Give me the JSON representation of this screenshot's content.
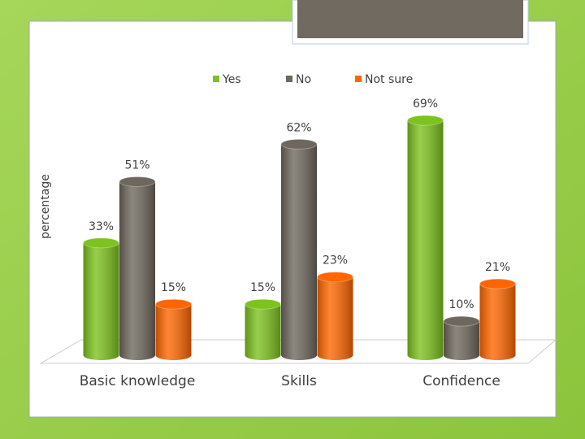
{
  "chart_data": {
    "type": "bar",
    "y_label": "percentage",
    "categories": [
      "Basic knowledge",
      "Skills",
      "Confidence"
    ],
    "series": [
      {
        "name": "Yes",
        "color": "#7dc21e",
        "values": [
          33,
          15,
          69
        ],
        "value_labels": [
          "33%",
          "15%",
          "69%"
        ]
      },
      {
        "name": "No",
        "color": "#6e675d",
        "values": [
          51,
          62,
          10
        ],
        "value_labels": [
          "51%",
          "62%",
          "10%"
        ]
      },
      {
        "name": "Not sure",
        "color": "#ff6600",
        "values": [
          15,
          23,
          21
        ],
        "value_labels": [
          "15%",
          "23%",
          "21%"
        ]
      }
    ],
    "ylim": [
      0,
      80
    ],
    "legend": "top"
  }
}
